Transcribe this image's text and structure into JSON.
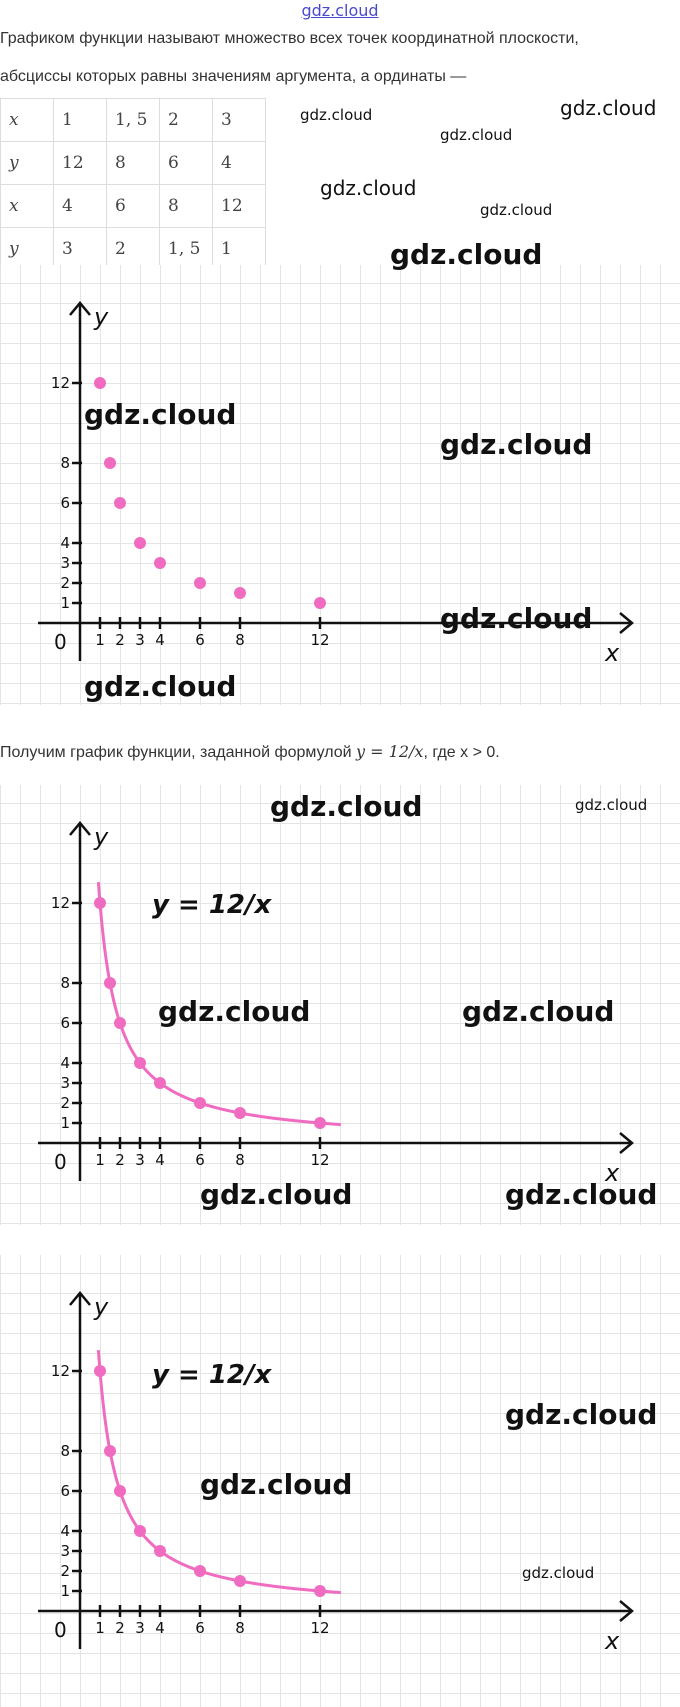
{
  "watermark": "gdz.cloud",
  "intro": {
    "line1": "Графиком функции называют множество всех точек координатной плоскости,",
    "line2": "абсциссы которых равны значениям аргумента, а ординаты —"
  },
  "table": {
    "rows": [
      [
        "x",
        "1",
        "1, 5",
        "2",
        "3"
      ],
      [
        "y",
        "12",
        "8",
        "6",
        "4"
      ],
      [
        "x",
        "4",
        "6",
        "8",
        "12"
      ],
      [
        "y",
        "3",
        "2",
        "1, 5",
        "1"
      ]
    ]
  },
  "sentence": {
    "text": "Получим график функции, заданной формулой ",
    "formula": "y = 12/x",
    "suffix": ", где x > 0."
  },
  "colors": {
    "points": "#f06cc0",
    "curve": "#f06cc0",
    "axes": "#111111",
    "grid": "#e4e4e4"
  },
  "chart_data": [
    {
      "type": "scatter",
      "xlabel": "x",
      "ylabel": "y",
      "origin_label": "0",
      "x_ticks": [
        1,
        2,
        3,
        4,
        6,
        8,
        12
      ],
      "y_ticks": [
        1,
        2,
        3,
        4,
        6,
        8,
        12
      ],
      "points": [
        [
          1,
          12
        ],
        [
          1.5,
          8
        ],
        [
          2,
          6
        ],
        [
          3,
          4
        ],
        [
          4,
          3
        ],
        [
          6,
          2
        ],
        [
          8,
          1.5
        ],
        [
          12,
          1
        ]
      ],
      "curve": false,
      "legend": ""
    },
    {
      "type": "line",
      "xlabel": "x",
      "ylabel": "y",
      "origin_label": "0",
      "x_ticks": [
        1,
        2,
        3,
        4,
        6,
        8,
        12
      ],
      "y_ticks": [
        1,
        2,
        3,
        4,
        6,
        8,
        12
      ],
      "points": [
        [
          1,
          12
        ],
        [
          1.5,
          8
        ],
        [
          2,
          6
        ],
        [
          3,
          4
        ],
        [
          4,
          3
        ],
        [
          6,
          2
        ],
        [
          8,
          1.5
        ],
        [
          12,
          1
        ]
      ],
      "curve": true,
      "legend": "y = 12/x"
    },
    {
      "type": "line",
      "xlabel": "x",
      "ylabel": "y",
      "origin_label": "0",
      "x_ticks": [
        1,
        2,
        3,
        4,
        6,
        8,
        12
      ],
      "y_ticks": [
        1,
        2,
        3,
        4,
        6,
        8,
        12
      ],
      "points": [
        [
          1,
          12
        ],
        [
          1.5,
          8
        ],
        [
          2,
          6
        ],
        [
          3,
          4
        ],
        [
          4,
          3
        ],
        [
          6,
          2
        ],
        [
          8,
          1.5
        ],
        [
          12,
          1
        ]
      ],
      "curve": true,
      "legend": "y = 12/x"
    }
  ]
}
